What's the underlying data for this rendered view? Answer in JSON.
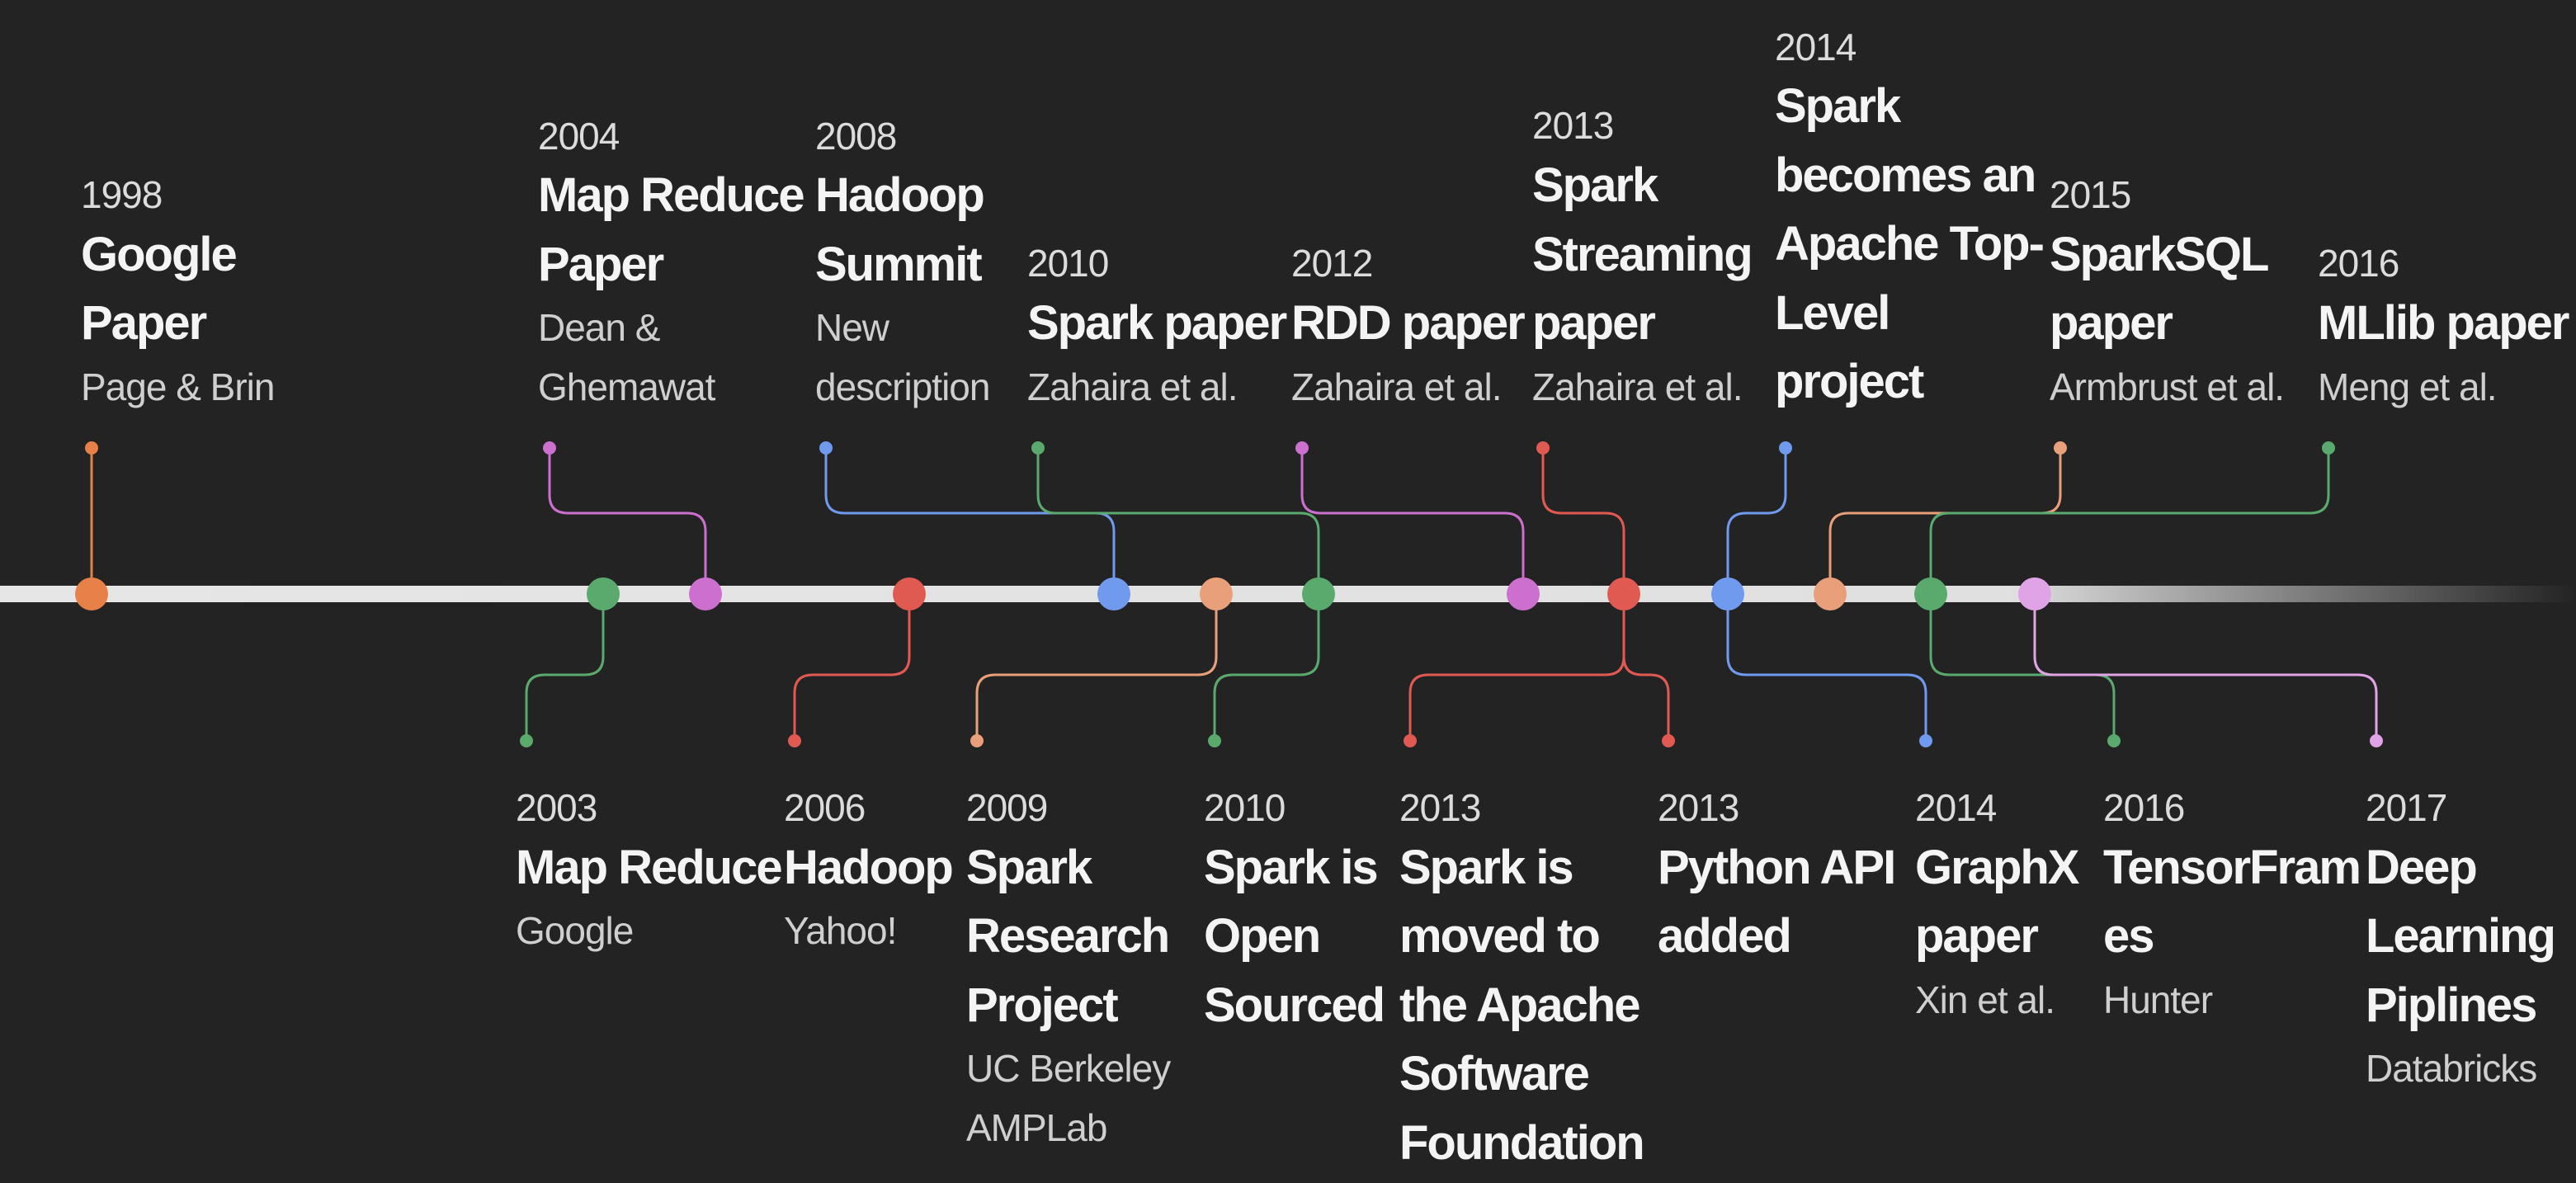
{
  "colors": {
    "background": "#232323",
    "axis": "#e0e0e0",
    "orange": "#e8804a",
    "green": "#5aaa6e",
    "purple": "#cc6fcf",
    "red": "#e15a52",
    "blue": "#6f9aed",
    "salmon": "#e9a07a",
    "lilac": "#e0a3e6"
  },
  "events": [
    {
      "key": "google-paper",
      "year": "1998",
      "title": [
        "Google",
        "Paper"
      ],
      "sub": [
        "Page & Brin"
      ],
      "side": "above",
      "color": "#e8804a"
    },
    {
      "key": "map-reduce-paper",
      "year": "2004",
      "title": [
        "Map Reduce",
        "Paper"
      ],
      "sub": [
        "Dean &",
        "Ghemawat"
      ],
      "side": "above",
      "color": "#cc6fcf"
    },
    {
      "key": "hadoop-summit",
      "year": "2008",
      "title": [
        "Hadoop",
        "Summit"
      ],
      "sub": [
        "New",
        "description"
      ],
      "side": "above",
      "color": "#6f9aed"
    },
    {
      "key": "spark-paper",
      "year": "2010",
      "title": [
        "Spark paper"
      ],
      "sub": [
        "Zahaira et al."
      ],
      "side": "above",
      "color": "#5aaa6e"
    },
    {
      "key": "rdd-paper",
      "year": "2012",
      "title": [
        "RDD paper"
      ],
      "sub": [
        "Zahaira et al."
      ],
      "side": "above",
      "color": "#cc6fcf"
    },
    {
      "key": "spark-streaming-paper",
      "year": "2013",
      "title": [
        "Spark",
        "Streaming",
        "paper"
      ],
      "sub": [
        "Zahaira et al."
      ],
      "side": "above",
      "color": "#e15a52"
    },
    {
      "key": "apache-top-level",
      "year": "2014",
      "title": [
        "Spark",
        "becomes an",
        "Apache Top-",
        "Level",
        "project"
      ],
      "sub": [],
      "side": "above",
      "color": "#6f9aed"
    },
    {
      "key": "sparksql-paper",
      "year": "2015",
      "title": [
        "SparkSQL",
        "paper"
      ],
      "sub": [
        "Armbrust et al."
      ],
      "side": "above",
      "color": "#e9a07a"
    },
    {
      "key": "mllib-paper",
      "year": "2016",
      "title": [
        "MLlib paper"
      ],
      "sub": [
        "Meng et al."
      ],
      "side": "above",
      "color": "#5aaa6e"
    },
    {
      "key": "map-reduce",
      "year": "2003",
      "title": [
        "Map Reduce"
      ],
      "sub": [
        "Google"
      ],
      "side": "below",
      "color": "#5aaa6e"
    },
    {
      "key": "hadoop",
      "year": "2006",
      "title": [
        "Hadoop"
      ],
      "sub": [
        "Yahoo!"
      ],
      "side": "below",
      "color": "#e15a52"
    },
    {
      "key": "spark-research-project",
      "year": "2009",
      "title": [
        "Spark",
        "Research",
        "Project"
      ],
      "sub": [
        "UC Berkeley",
        "AMPLab"
      ],
      "side": "below",
      "color": "#e9a07a"
    },
    {
      "key": "spark-open-sourced",
      "year": "2010",
      "title": [
        "Spark is",
        "Open",
        "Sourced"
      ],
      "sub": [],
      "side": "below",
      "color": "#5aaa6e"
    },
    {
      "key": "spark-apache-foundation",
      "year": "2013",
      "title": [
        "Spark is",
        "moved to",
        "the Apache",
        "Software",
        "Foundation"
      ],
      "sub": [],
      "side": "below",
      "color": "#e15a52"
    },
    {
      "key": "python-api",
      "year": "2013",
      "title": [
        "Python API",
        "added"
      ],
      "sub": [],
      "side": "below",
      "color": "#e15a52"
    },
    {
      "key": "graphx-paper",
      "year": "2014",
      "title": [
        "GraphX",
        "paper"
      ],
      "sub": [
        "Xin et al."
      ],
      "side": "below",
      "color": "#6f9aed"
    },
    {
      "key": "tensorframes",
      "year": "2016",
      "title": [
        "TensorFram",
        "es"
      ],
      "sub": [
        "Hunter"
      ],
      "side": "below",
      "color": "#5aaa6e"
    },
    {
      "key": "deep-learning-pipelines",
      "year": "2017",
      "title": [
        "Deep",
        "Learning",
        "Piplines"
      ],
      "sub": [
        "Databricks"
      ],
      "side": "below",
      "color": "#e0a3e6"
    }
  ]
}
